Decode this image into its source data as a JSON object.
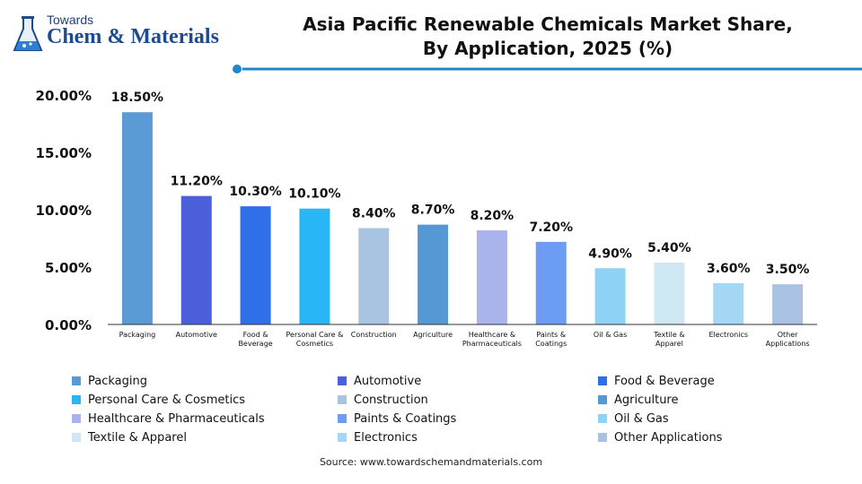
{
  "brand": {
    "top": "Towards",
    "name": "Chem & Materials"
  },
  "chart_data": {
    "type": "bar",
    "title": "Asia Pacific Renewable Chemicals Market Share, By Application, 2025 (%)",
    "title_lines": [
      "Asia Pacific Renewable Chemicals Market Share,",
      "By Application, 2025 (%)"
    ],
    "categories": [
      "Packaging",
      "Automotive",
      "Food & Beverage",
      "Personal Care & Cosmetics",
      "Construction",
      "Agriculture",
      "Healthcare & Pharmaceuticals",
      "Paints & Coatings",
      "Oil & Gas",
      "Textile & Apparel",
      "Electronics",
      "Other Applications"
    ],
    "category_tick_lines": [
      [
        "Packaging"
      ],
      [
        "Automotive"
      ],
      [
        "Food &",
        "Beverage"
      ],
      [
        "Personal Care &",
        "Cosmetics"
      ],
      [
        "Construction"
      ],
      [
        "Agriculture"
      ],
      [
        "Healthcare &",
        "Pharmaceuticals"
      ],
      [
        "Paints &",
        "Coatings"
      ],
      [
        "Oil & Gas"
      ],
      [
        "Textile &",
        "Apparel"
      ],
      [
        "Electronics"
      ],
      [
        "Other",
        "Applications"
      ]
    ],
    "values": [
      18.5,
      11.2,
      10.3,
      10.1,
      8.4,
      8.7,
      8.2,
      7.2,
      4.9,
      5.4,
      3.6,
      3.5
    ],
    "value_labels": [
      "18.50%",
      "11.20%",
      "10.30%",
      "10.10%",
      "8.40%",
      "8.70%",
      "8.20%",
      "7.20%",
      "4.90%",
      "5.40%",
      "3.60%",
      "3.50%"
    ],
    "colors": [
      "#5b9bd5",
      "#4a5fd9",
      "#2f6fe8",
      "#29b6f6",
      "#a9c4e0",
      "#5499d3",
      "#a9b4ec",
      "#6c9cf4",
      "#8ed3f5",
      "#cfe7f2",
      "#a3d7f5",
      "#a9c2e3"
    ],
    "ylim": [
      0,
      20
    ],
    "yticks": [
      0,
      5,
      10,
      15,
      20
    ],
    "ytick_labels": [
      "0.00%",
      "5.00%",
      "10.00%",
      "15.00%",
      "20.00%"
    ],
    "xlabel": "",
    "ylabel": "",
    "grid": false,
    "legend_position": "bottom"
  },
  "legend": [
    "Packaging",
    "Automotive",
    "Food & Beverage",
    "Personal Care & Cosmetics",
    "Construction",
    "Agriculture",
    "Healthcare & Pharmaceuticals",
    "Paints & Coatings",
    "Oil & Gas",
    "Textile & Apparel",
    "Electronics",
    "Other Applications"
  ],
  "source": "Source: www.towardschemandmaterials.com",
  "accent_color": "#1e88c8"
}
